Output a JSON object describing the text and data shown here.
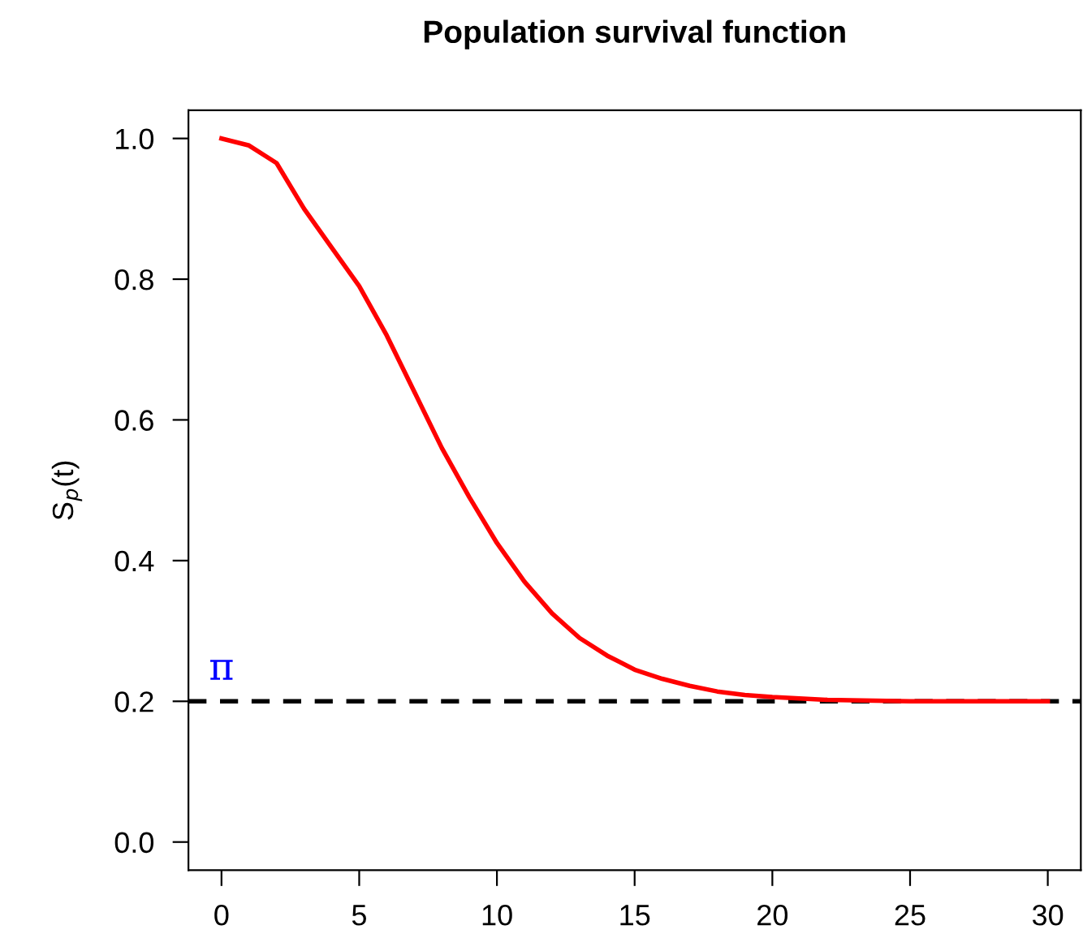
{
  "chart_data": {
    "type": "line",
    "title": "Population survival function",
    "ylabel": "S$_{p}$(t)",
    "x": [
      0,
      1,
      2,
      3,
      4,
      5,
      6,
      7,
      8,
      9,
      10,
      11,
      12,
      13,
      14,
      15,
      16,
      17,
      18,
      19,
      20,
      22,
      25,
      30
    ],
    "series": [
      {
        "color": "#ff0000",
        "values": [
          1.0,
          0.99,
          0.965,
          0.9,
          0.845,
          0.79,
          0.72,
          0.64,
          0.56,
          0.49,
          0.425,
          0.37,
          0.325,
          0.29,
          0.265,
          0.245,
          0.232,
          0.222,
          0.214,
          0.209,
          0.206,
          0.202,
          0.2,
          0.2
        ]
      }
    ],
    "xlim": [
      -1.2,
      31.2
    ],
    "xticks": [
      0,
      5,
      10,
      15,
      20,
      25,
      30
    ],
    "ylim": [
      -0.04,
      1.04
    ],
    "yticks": [
      {
        "value": 0,
        "label": "0.0"
      },
      0.2,
      0.4,
      0.6,
      0.8,
      {
        "value": 1,
        "label": "1.0"
      }
    ],
    "ref_lines": [
      {
        "axis": "y",
        "value": 0.2,
        "label": "π",
        "color": "#000000",
        "line_style": "dashed"
      }
    ],
    "grid": false,
    "legend": false,
    "marker": "none",
    "line_style": "solid"
  }
}
